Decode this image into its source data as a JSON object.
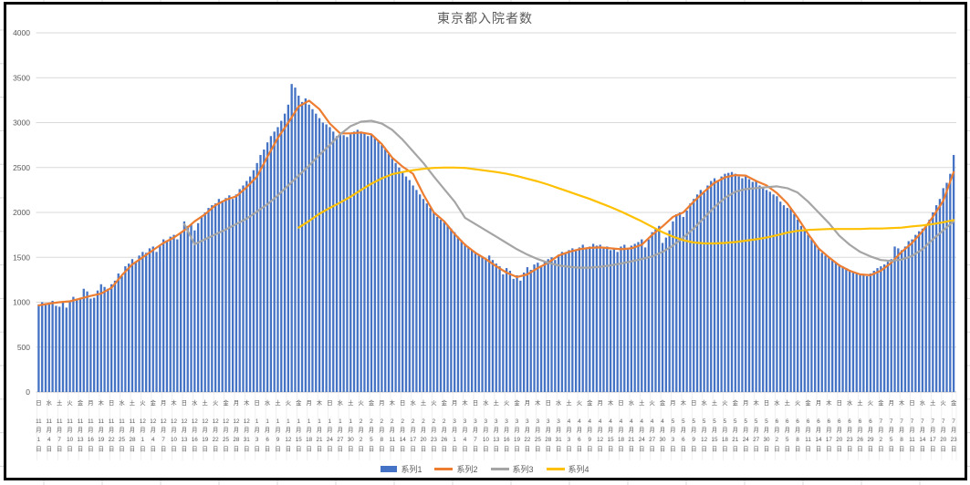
{
  "chart_data": {
    "type": "combo_bar_line",
    "title": "東京都入院者数",
    "legend_position": "bottom",
    "gridlines": "horizontal",
    "text_color": "#595959",
    "gridline_color": "#D9D9D9",
    "y_axis": {
      "min": 0,
      "max": 4000,
      "step": 500,
      "tick_labels": [
        "0",
        "500",
        "1000",
        "1500",
        "2000",
        "2500",
        "3000",
        "3500",
        "4000"
      ]
    },
    "x_axis": {
      "tick_interval_days": 3,
      "first_label": "日 11月1日",
      "last_label": "金 7月23日",
      "label_style": "vertical: 曜日 above 月/日 date"
    },
    "tick_labels": [
      [
        "日",
        11,
        1
      ],
      [
        "水",
        11,
        4
      ],
      [
        "土",
        11,
        7
      ],
      [
        "火",
        11,
        10
      ],
      [
        "金",
        11,
        13
      ],
      [
        "月",
        11,
        16
      ],
      [
        "木",
        11,
        19
      ],
      [
        "日",
        11,
        22
      ],
      [
        "水",
        11,
        25
      ],
      [
        "土",
        11,
        28
      ],
      [
        "火",
        12,
        1
      ],
      [
        "金",
        12,
        4
      ],
      [
        "月",
        12,
        7
      ],
      [
        "木",
        12,
        10
      ],
      [
        "日",
        12,
        13
      ],
      [
        "水",
        12,
        16
      ],
      [
        "土",
        12,
        19
      ],
      [
        "火",
        12,
        22
      ],
      [
        "金",
        12,
        25
      ],
      [
        "月",
        12,
        28
      ],
      [
        "木",
        12,
        31
      ],
      [
        "日",
        1,
        3
      ],
      [
        "水",
        1,
        6
      ],
      [
        "土",
        1,
        9
      ],
      [
        "火",
        1,
        12
      ],
      [
        "金",
        1,
        15
      ],
      [
        "月",
        1,
        18
      ],
      [
        "木",
        1,
        21
      ],
      [
        "日",
        1,
        24
      ],
      [
        "水",
        1,
        27
      ],
      [
        "土",
        1,
        30
      ],
      [
        "火",
        2,
        2
      ],
      [
        "金",
        2,
        5
      ],
      [
        "月",
        2,
        8
      ],
      [
        "木",
        2,
        11
      ],
      [
        "日",
        2,
        14
      ],
      [
        "水",
        2,
        17
      ],
      [
        "土",
        2,
        20
      ],
      [
        "火",
        2,
        23
      ],
      [
        "金",
        2,
        26
      ],
      [
        "月",
        3,
        1
      ],
      [
        "木",
        3,
        4
      ],
      [
        "日",
        3,
        7
      ],
      [
        "水",
        3,
        10
      ],
      [
        "土",
        3,
        13
      ],
      [
        "火",
        3,
        16
      ],
      [
        "金",
        3,
        19
      ],
      [
        "月",
        3,
        22
      ],
      [
        "木",
        3,
        25
      ],
      [
        "日",
        3,
        28
      ],
      [
        "水",
        3,
        31
      ],
      [
        "土",
        4,
        3
      ],
      [
        "火",
        4,
        6
      ],
      [
        "金",
        4,
        9
      ],
      [
        "月",
        4,
        12
      ],
      [
        "木",
        4,
        15
      ],
      [
        "日",
        4,
        18
      ],
      [
        "水",
        4,
        21
      ],
      [
        "土",
        4,
        24
      ],
      [
        "火",
        4,
        27
      ],
      [
        "金",
        4,
        30
      ],
      [
        "月",
        5,
        3
      ],
      [
        "木",
        5,
        6
      ],
      [
        "日",
        5,
        9
      ],
      [
        "水",
        5,
        12
      ],
      [
        "土",
        5,
        15
      ],
      [
        "火",
        5,
        18
      ],
      [
        "金",
        5,
        21
      ],
      [
        "月",
        5,
        24
      ],
      [
        "木",
        5,
        27
      ],
      [
        "日",
        5,
        30
      ],
      [
        "水",
        6,
        2
      ],
      [
        "土",
        6,
        5
      ],
      [
        "火",
        6,
        8
      ],
      [
        "金",
        6,
        11
      ],
      [
        "月",
        6,
        14
      ],
      [
        "木",
        6,
        17
      ],
      [
        "日",
        6,
        20
      ],
      [
        "水",
        6,
        23
      ],
      [
        "土",
        6,
        26
      ],
      [
        "火",
        6,
        29
      ],
      [
        "金",
        7,
        2
      ],
      [
        "月",
        7,
        5
      ],
      [
        "木",
        7,
        8
      ],
      [
        "日",
        7,
        11
      ],
      [
        "水",
        7,
        14
      ],
      [
        "土",
        7,
        17
      ],
      [
        "火",
        7,
        20
      ],
      [
        "金",
        7,
        23
      ]
    ],
    "series": [
      {
        "name": "系列1",
        "type": "bar",
        "color": "#4472C4",
        "frequency": "daily",
        "values": [
          975,
          1000,
          990,
          980,
          1015,
          960,
          950,
          1000,
          940,
          1010,
          1060,
          1030,
          1050,
          1150,
          1120,
          1040,
          1050,
          1130,
          1200,
          1170,
          1150,
          1200,
          1240,
          1320,
          1290,
          1400,
          1430,
          1480,
          1450,
          1520,
          1560,
          1550,
          1600,
          1620,
          1560,
          1640,
          1700,
          1680,
          1730,
          1750,
          1700,
          1780,
          1900,
          1850,
          1870,
          1800,
          1880,
          1950,
          2000,
          2050,
          2080,
          2100,
          2150,
          2130,
          2160,
          2190,
          2150,
          2200,
          2260,
          2300,
          2350,
          2400,
          2470,
          2550,
          2640,
          2700,
          2780,
          2850,
          2900,
          2950,
          3020,
          3100,
          3200,
          3430,
          3390,
          3300,
          3230,
          3270,
          3200,
          3150,
          3100,
          3050,
          3000,
          2980,
          2950,
          2900,
          2850,
          2870,
          2860,
          2840,
          2870,
          2900,
          2920,
          2900,
          2880,
          2850,
          2870,
          2830,
          2800,
          2750,
          2700,
          2650,
          2600,
          2550,
          2500,
          2450,
          2400,
          2360,
          2300,
          2250,
          2200,
          2150,
          2100,
          2050,
          2000,
          1950,
          1920,
          1890,
          1860,
          1820,
          1780,
          1730,
          1690,
          1650,
          1610,
          1580,
          1550,
          1530,
          1500,
          1480,
          1520,
          1470,
          1430,
          1400,
          1310,
          1380,
          1350,
          1260,
          1300,
          1240,
          1330,
          1390,
          1360,
          1420,
          1440,
          1400,
          1450,
          1480,
          1500,
          1470,
          1530,
          1560,
          1540,
          1580,
          1600,
          1570,
          1610,
          1640,
          1600,
          1620,
          1650,
          1630,
          1640,
          1600,
          1620,
          1580,
          1600,
          1560,
          1620,
          1640,
          1600,
          1630,
          1650,
          1670,
          1700,
          1610,
          1700,
          1780,
          1815,
          1850,
          1660,
          1720,
          1800,
          1900,
          1980,
          2000,
          1950,
          2020,
          2100,
          2150,
          2200,
          2250,
          2220,
          2300,
          2350,
          2380,
          2350,
          2400,
          2430,
          2440,
          2450,
          2430,
          2400,
          2380,
          2400,
          2370,
          2340,
          2350,
          2300,
          2280,
          2250,
          2230,
          2200,
          2180,
          2120,
          2080,
          2050,
          2050,
          1980,
          1920,
          1850,
          1800,
          1750,
          1700,
          1650,
          1600,
          1550,
          1520,
          1500,
          1470,
          1440,
          1420,
          1400,
          1380,
          1360,
          1340,
          1320,
          1300,
          1310,
          1290,
          1320,
          1350,
          1380,
          1400,
          1420,
          1450,
          1480,
          1620,
          1600,
          1580,
          1620,
          1680,
          1700,
          1750,
          1790,
          1820,
          1850,
          1920,
          2000,
          2080,
          2150,
          2270,
          2330,
          2430,
          2640
        ]
      },
      {
        "name": "系列2",
        "type": "line",
        "color": "#ED7D31",
        "values_at_ticks": [
          965,
          985,
          1000,
          1010,
          1040,
          1070,
          1095,
          1160,
          1300,
          1420,
          1500,
          1580,
          1660,
          1720,
          1800,
          1900,
          1980,
          2080,
          2140,
          2180,
          2280,
          2400,
          2620,
          2830,
          3000,
          3180,
          3245,
          3150,
          2990,
          2880,
          2880,
          2890,
          2870,
          2760,
          2610,
          2510,
          2430,
          2200,
          2000,
          1900,
          1760,
          1640,
          1550,
          1480,
          1400,
          1330,
          1280,
          1310,
          1380,
          1440,
          1520,
          1560,
          1590,
          1605,
          1610,
          1600,
          1590,
          1600,
          1640,
          1750,
          1845,
          1950,
          2000,
          2120,
          2230,
          2330,
          2390,
          2415,
          2410,
          2350,
          2300,
          2215,
          2100,
          1940,
          1760,
          1600,
          1500,
          1410,
          1350,
          1310,
          1300,
          1350,
          1440,
          1560,
          1660,
          1790,
          1950,
          2130,
          2450
        ]
      },
      {
        "name": "系列3",
        "type": "line",
        "color": "#A5A5A5",
        "values_at_ticks": [
          null,
          null,
          null,
          null,
          null,
          null,
          null,
          null,
          null,
          null,
          null,
          null,
          null,
          null,
          1870,
          1645,
          1700,
          1755,
          1810,
          1870,
          1930,
          2010,
          2090,
          2190,
          2300,
          2410,
          2520,
          2640,
          2750,
          2870,
          2960,
          3010,
          3020,
          2990,
          2920,
          2810,
          2680,
          2550,
          2400,
          2260,
          2120,
          1940,
          1870,
          1800,
          1730,
          1660,
          1590,
          1530,
          1480,
          1440,
          1410,
          1395,
          1385,
          1385,
          1395,
          1410,
          1430,
          1455,
          1480,
          1510,
          1560,
          1630,
          1720,
          1820,
          1940,
          2060,
          2160,
          2230,
          2260,
          2270,
          2280,
          2290,
          2270,
          2220,
          2120,
          2000,
          1880,
          1740,
          1640,
          1560,
          1510,
          1470,
          1460,
          1475,
          1515,
          1590,
          1700,
          1800,
          1900
        ]
      },
      {
        "name": "系列4",
        "type": "line",
        "color": "#FFC000",
        "values_at_ticks": [
          null,
          null,
          null,
          null,
          null,
          null,
          null,
          null,
          null,
          null,
          null,
          null,
          null,
          null,
          null,
          null,
          null,
          null,
          null,
          null,
          null,
          null,
          null,
          null,
          null,
          1830,
          1905,
          1985,
          2050,
          2110,
          2175,
          2250,
          2320,
          2380,
          2425,
          2450,
          2470,
          2485,
          2495,
          2500,
          2500,
          2495,
          2480,
          2465,
          2450,
          2430,
          2405,
          2375,
          2345,
          2310,
          2270,
          2230,
          2190,
          2150,
          2105,
          2060,
          2010,
          1955,
          1900,
          1840,
          1780,
          1730,
          1690,
          1665,
          1655,
          1655,
          1660,
          1670,
          1685,
          1700,
          1720,
          1745,
          1775,
          1795,
          1805,
          1810,
          1815,
          1815,
          1815,
          1815,
          1820,
          1820,
          1825,
          1830,
          1845,
          1855,
          1870,
          1890,
          1915
        ]
      }
    ]
  }
}
